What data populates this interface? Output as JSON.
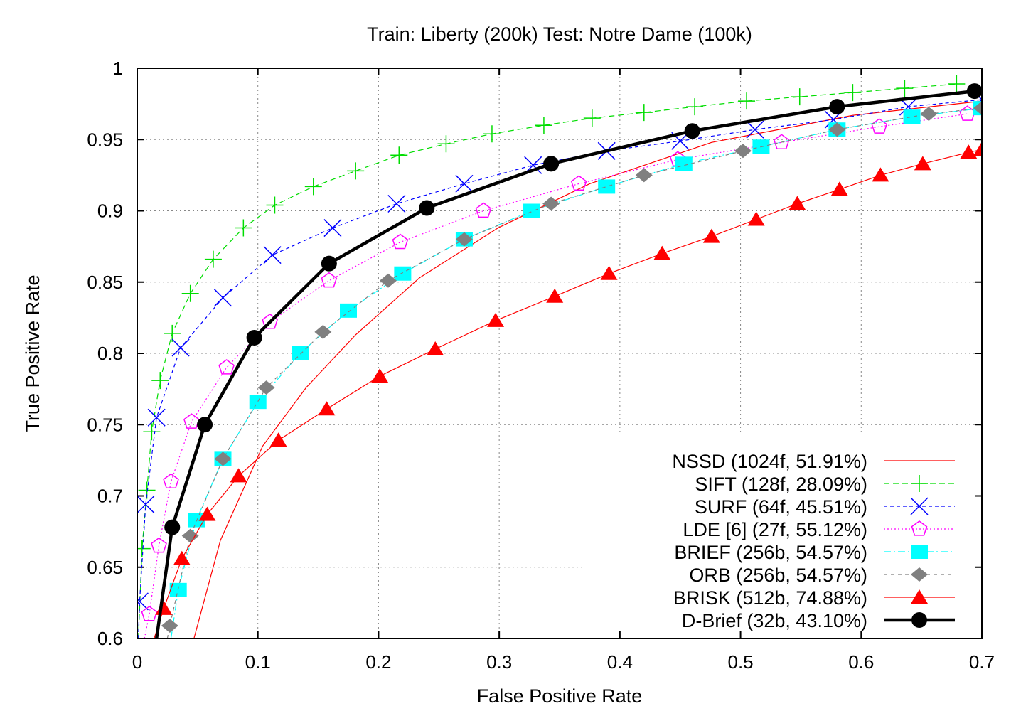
{
  "chart_data": {
    "type": "line",
    "title": "Train: Liberty (200k) Test: Notre Dame (100k)",
    "xlabel": "False Positive Rate",
    "ylabel": "True Positive Rate",
    "xlim": [
      0,
      0.7
    ],
    "ylim": [
      0.6,
      1
    ],
    "xticks": [
      "0",
      "0.1",
      "0.2",
      "0.3",
      "0.4",
      "0.5",
      "0.6",
      "0.7"
    ],
    "yticks": [
      "0.6",
      "0.65",
      "0.7",
      "0.75",
      "0.8",
      "0.85",
      "0.9",
      "0.95",
      "1"
    ],
    "grid": true,
    "legend_position": "bottom-right",
    "series": [
      {
        "name": "NSSD (1024f, 51.91%)",
        "color": "#ff0000",
        "marker": "none",
        "dash": "solid",
        "width": 1.2,
        "x": [
          0.047,
          0.069,
          0.104,
          0.14,
          0.181,
          0.234,
          0.299,
          0.375,
          0.476,
          0.593,
          0.7
        ],
        "y": [
          0.6,
          0.669,
          0.735,
          0.776,
          0.813,
          0.853,
          0.888,
          0.919,
          0.948,
          0.967,
          0.977
        ]
      },
      {
        "name": "SIFT (128f, 28.09%)",
        "color": "#00dd00",
        "marker": "plus",
        "dash": "dashed",
        "width": 1.2,
        "x": [
          0.001,
          0.004,
          0.008,
          0.012,
          0.019,
          0.029,
          0.044,
          0.063,
          0.088,
          0.114,
          0.146,
          0.181,
          0.217,
          0.256,
          0.294,
          0.337,
          0.377,
          0.42,
          0.462,
          0.505,
          0.549,
          0.593,
          0.636,
          0.679
        ],
        "y": [
          0.6,
          0.663,
          0.704,
          0.745,
          0.781,
          0.814,
          0.842,
          0.866,
          0.888,
          0.904,
          0.917,
          0.928,
          0.939,
          0.947,
          0.954,
          0.96,
          0.965,
          0.969,
          0.973,
          0.977,
          0.98,
          0.983,
          0.986,
          0.989
        ]
      },
      {
        "name": "SURF (64f, 45.51%)",
        "color": "#0000ff",
        "marker": "cross",
        "dash": "short-dash",
        "width": 1.2,
        "x": [
          0.001,
          0.002,
          0.007,
          0.016,
          0.036,
          0.071,
          0.112,
          0.162,
          0.215,
          0.271,
          0.328,
          0.389,
          0.45,
          0.512,
          0.577,
          0.639,
          0.7
        ],
        "y": [
          0.6,
          0.626,
          0.694,
          0.755,
          0.804,
          0.839,
          0.869,
          0.888,
          0.905,
          0.919,
          0.932,
          0.942,
          0.949,
          0.957,
          0.964,
          0.973,
          0.978
        ]
      },
      {
        "name": "LDE [6] (27f, 55.12%)",
        "color": "#ff00ff",
        "marker": "pentagon",
        "dash": "dotted",
        "width": 1.2,
        "x": [
          0.006,
          0.01,
          0.018,
          0.028,
          0.045,
          0.074,
          0.11,
          0.159,
          0.218,
          0.287,
          0.366,
          0.448,
          0.534,
          0.615,
          0.688
        ],
        "y": [
          0.6,
          0.617,
          0.665,
          0.71,
          0.752,
          0.79,
          0.822,
          0.851,
          0.878,
          0.9,
          0.919,
          0.936,
          0.948,
          0.959,
          0.968
        ]
      },
      {
        "name": "BRIEF (256b, 54.57%)",
        "color": "#00ffff",
        "marker": "square",
        "dash": "dash-dot",
        "width": 1.2,
        "x": [
          0.028,
          0.034,
          0.049,
          0.071,
          0.1,
          0.135,
          0.175,
          0.22,
          0.271,
          0.327,
          0.389,
          0.453,
          0.517,
          0.58,
          0.642,
          0.7
        ],
        "y": [
          0.6,
          0.634,
          0.683,
          0.726,
          0.766,
          0.8,
          0.83,
          0.856,
          0.88,
          0.9,
          0.917,
          0.933,
          0.945,
          0.957,
          0.966,
          0.972
        ]
      },
      {
        "name": "ORB (256b, 54.57%)",
        "color": "#808080",
        "marker": "diamond",
        "dash": "dashed-gray",
        "width": 1.2,
        "x": [
          0.025,
          0.027,
          0.044,
          0.071,
          0.107,
          0.154,
          0.208,
          0.271,
          0.343,
          0.42,
          0.502,
          0.58,
          0.656,
          0.7
        ],
        "y": [
          0.6,
          0.609,
          0.672,
          0.726,
          0.776,
          0.815,
          0.851,
          0.88,
          0.905,
          0.925,
          0.942,
          0.957,
          0.968,
          0.972
        ]
      },
      {
        "name": "BRISK (512b, 74.88%)",
        "color": "#ff0000",
        "marker": "triangle",
        "dash": "solid",
        "width": 1.2,
        "x": [
          0.014,
          0.022,
          0.037,
          0.058,
          0.084,
          0.117,
          0.157,
          0.201,
          0.247,
          0.297,
          0.346,
          0.391,
          0.435,
          0.476,
          0.513,
          0.547,
          0.582,
          0.616,
          0.651,
          0.689,
          0.7
        ],
        "y": [
          0.6,
          0.621,
          0.656,
          0.687,
          0.714,
          0.739,
          0.761,
          0.784,
          0.803,
          0.823,
          0.84,
          0.856,
          0.87,
          0.882,
          0.894,
          0.905,
          0.915,
          0.925,
          0.933,
          0.941,
          0.943
        ]
      },
      {
        "name": "D-Brief (32b, 43.10%)",
        "color": "#000000",
        "marker": "circle",
        "dash": "solid",
        "width": 4.5,
        "x": [
          0.016,
          0.029,
          0.056,
          0.097,
          0.159,
          0.24,
          0.343,
          0.46,
          0.58,
          0.694
        ],
        "y": [
          0.6,
          0.678,
          0.75,
          0.811,
          0.863,
          0.902,
          0.933,
          0.956,
          0.973,
          0.984
        ]
      }
    ]
  }
}
